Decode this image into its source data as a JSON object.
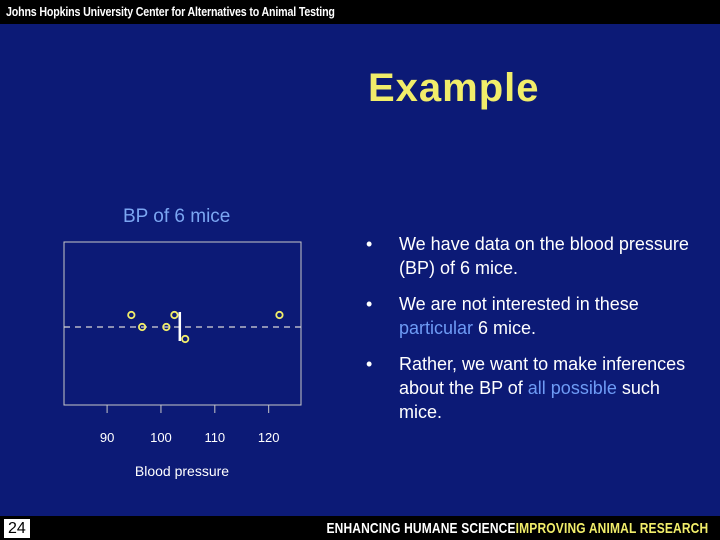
{
  "header": {
    "organization": "Johns Hopkins University Center for Alternatives to Animal Testing"
  },
  "slide": {
    "title": "Example",
    "bullets": [
      {
        "parts": [
          {
            "text": "We have data on the blood pressure (BP) of 6 mice.",
            "highlight": false
          }
        ]
      },
      {
        "parts": [
          {
            "text": "We are not interested in these ",
            "highlight": false
          },
          {
            "text": "particular",
            "highlight": true
          },
          {
            "text": " 6 mice.",
            "highlight": false
          }
        ]
      },
      {
        "parts": [
          {
            "text": "Rather, we want to make inferences about the BP of ",
            "highlight": false
          },
          {
            "text": "all possible",
            "highlight": true
          },
          {
            "text": " such mice.",
            "highlight": false
          }
        ]
      }
    ],
    "bullet_symbol": "•",
    "page_number": "24"
  },
  "footer": {
    "tagline_part1": "ENHANCING HUMANE SCIENCE",
    "tagline_part2": "IMPROVING ANIMAL RESEARCH"
  },
  "colors": {
    "background": "#0c1a76",
    "title": "#f1ed6a",
    "highlight": "#6e9bf5",
    "points": "#f1ed6a",
    "axis": "#c8c8c8"
  },
  "chart_data": {
    "type": "scatter",
    "title": "BP of 6 mice",
    "xlabel": "Blood pressure",
    "ylabel": "",
    "xlim": [
      82,
      126
    ],
    "xticks": [
      90,
      100,
      110,
      120
    ],
    "points": [
      {
        "x": 94.5,
        "level": 1
      },
      {
        "x": 96.5,
        "level": 0
      },
      {
        "x": 101.0,
        "level": 0
      },
      {
        "x": 102.5,
        "level": 1
      },
      {
        "x": 104.5,
        "level": -1
      },
      {
        "x": 122.0,
        "level": 1
      }
    ],
    "mean": 103.5,
    "reference_line": "dashed",
    "grid": false
  }
}
